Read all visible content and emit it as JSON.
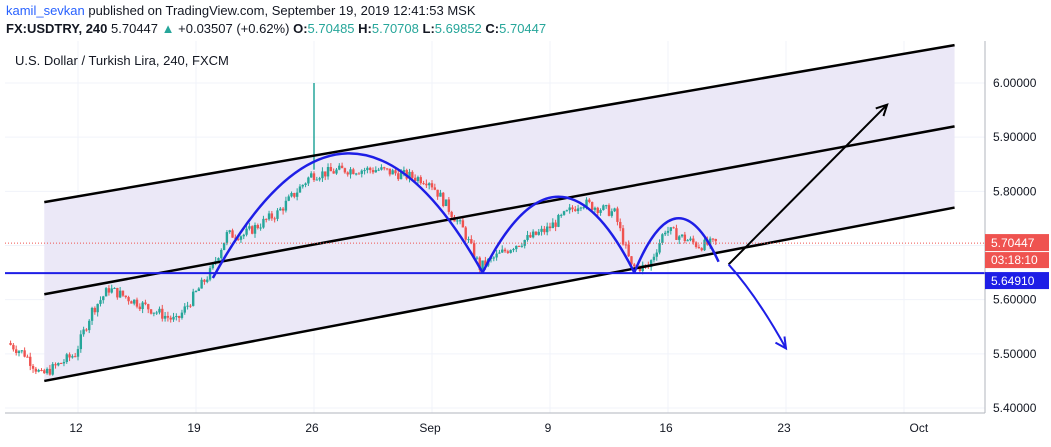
{
  "header": {
    "author": "kamil_sevkan",
    "published_text": "published on TradingView.com, September 19, 2019 12:41:53 MSK",
    "symbol": "FX:USDTRY, 240",
    "last": "5.70447",
    "change_arrow": "▲",
    "change": "+0.03507 (+0.62%)",
    "o_label": "O:",
    "o": "5.70485",
    "h_label": "H:",
    "h": "5.70708",
    "l_label": "L:",
    "l": "5.69852",
    "c_label": "C:",
    "c": "5.70447"
  },
  "chart_data": {
    "type": "candlestick",
    "title": "U.S. Dollar / Turkish Lira, 240, FXCM",
    "y_ticks": [
      "6.00000",
      "5.90000",
      "5.80000",
      "5.70000",
      "5.60000",
      "5.50000",
      "5.40000"
    ],
    "x_ticks": [
      "12",
      "19",
      "26",
      "Sep",
      "9",
      "16",
      "23",
      "Oct"
    ],
    "ylim": [
      5.4,
      6.0
    ],
    "price_labels": {
      "current": "5.70447",
      "countdown": "03:18:10",
      "horizontal_line": "5.64910"
    },
    "anchors": [
      {
        "date": "Aug 08",
        "price": 5.52
      },
      {
        "date": "Aug 09",
        "price": 5.5
      },
      {
        "date": "Aug 10",
        "price": 5.46
      },
      {
        "date": "Aug 12",
        "price": 5.5
      },
      {
        "date": "Aug 13",
        "price": 5.58
      },
      {
        "date": "Aug 14",
        "price": 5.62
      },
      {
        "date": "Aug 16",
        "price": 5.59
      },
      {
        "date": "Aug 18",
        "price": 5.56
      },
      {
        "date": "Aug 20",
        "price": 5.65
      },
      {
        "date": "Aug 21",
        "price": 5.72
      },
      {
        "date": "Aug 22",
        "price": 5.72
      },
      {
        "date": "Aug 24",
        "price": 5.76
      },
      {
        "date": "Aug 26",
        "price": 5.83
      },
      {
        "date": "Aug 28",
        "price": 5.84
      },
      {
        "date": "Aug 30",
        "price": 5.84
      },
      {
        "date": "Sep 02",
        "price": 5.82
      },
      {
        "date": "Sep 04",
        "price": 5.73
      },
      {
        "date": "Sep 05",
        "price": 5.66
      },
      {
        "date": "Sep 07",
        "price": 5.7
      },
      {
        "date": "Sep 09",
        "price": 5.73
      },
      {
        "date": "Sep 11",
        "price": 5.78
      },
      {
        "date": "Sep 13",
        "price": 5.76
      },
      {
        "date": "Sep 14",
        "price": 5.66
      },
      {
        "date": "Sep 15",
        "price": 5.66
      },
      {
        "date": "Sep 16",
        "price": 5.73
      },
      {
        "date": "Sep 18",
        "price": 5.7
      },
      {
        "date": "Sep 19",
        "price": 5.70447
      }
    ],
    "spike": {
      "date": "Aug 26",
      "high": 6.0
    },
    "channel_lines": [
      {
        "from": {
          "date": "Aug 10",
          "price": 5.78
        },
        "to": {
          "date": "Oct 03",
          "price": 6.07
        }
      },
      {
        "from": {
          "date": "Aug 10",
          "price": 5.61
        },
        "to": {
          "date": "Oct 03",
          "price": 5.92
        }
      },
      {
        "from": {
          "date": "Aug 10",
          "price": 5.45
        },
        "to": {
          "date": "Oct 03",
          "price": 5.77
        }
      }
    ],
    "horizontal_level": 5.6491,
    "current_level": 5.70447
  }
}
